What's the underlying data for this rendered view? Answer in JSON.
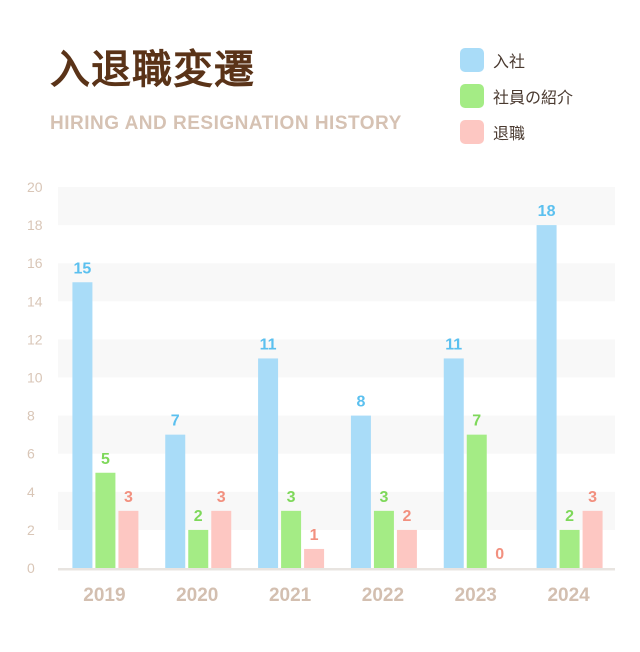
{
  "title": "入退職変遷",
  "subtitle": "HIRING AND RESIGNATION HISTORY",
  "chart_data": {
    "type": "bar",
    "categories": [
      "2019",
      "2020",
      "2021",
      "2022",
      "2023",
      "2024"
    ],
    "series": [
      {
        "name": "入社",
        "values": [
          15,
          7,
          11,
          8,
          11,
          18
        ],
        "color": "#a9dcf8",
        "label_color": "#5bc0ef"
      },
      {
        "name": "社員の紹介",
        "values": [
          5,
          2,
          3,
          3,
          7,
          2
        ],
        "color": "#a4ec85",
        "label_color": "#7ed85a"
      },
      {
        "name": "退職",
        "values": [
          3,
          3,
          1,
          2,
          0,
          3
        ],
        "color": "#fdc7c2",
        "label_color": "#f2907f"
      }
    ],
    "ylim": [
      0,
      20
    ],
    "yticks": [
      0,
      2,
      4,
      6,
      8,
      10,
      12,
      14,
      16,
      18,
      20
    ],
    "grid": "alternating-bands",
    "legend": "top-right"
  }
}
